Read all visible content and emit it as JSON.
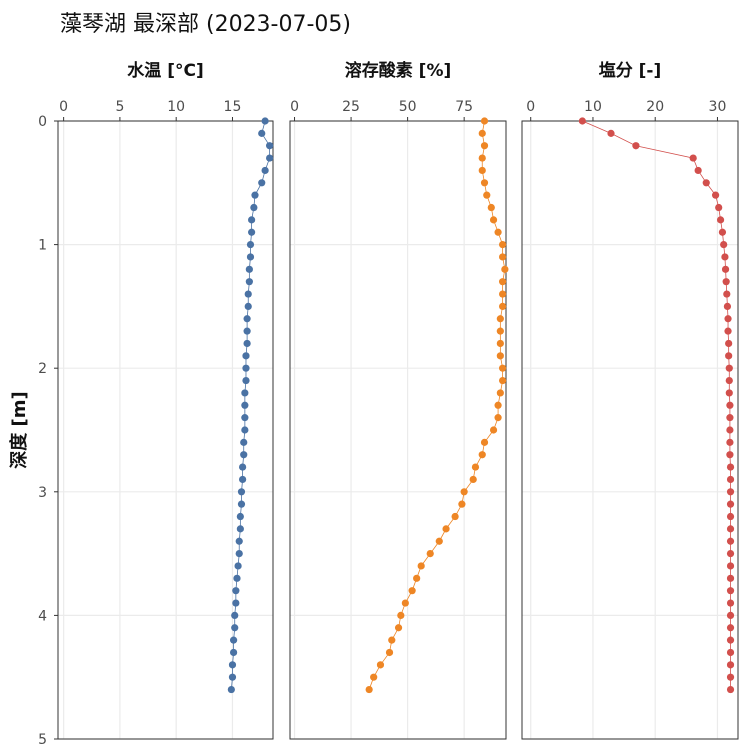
{
  "title": "藻琴湖 最深部 (2023-07-05)",
  "chart_data": {
    "type": "scatter",
    "ylabel": "深度 [m]",
    "ylim": [
      0,
      5
    ],
    "y_reversed": true,
    "y_ticks": [
      0,
      1,
      2,
      3,
      4,
      5
    ],
    "grid": true,
    "connected_points": true,
    "depth": [
      0.0,
      0.1,
      0.2,
      0.3,
      0.4,
      0.5,
      0.6,
      0.7,
      0.8,
      0.9,
      1.0,
      1.1,
      1.2,
      1.3,
      1.4,
      1.5,
      1.6,
      1.7,
      1.8,
      1.9,
      2.0,
      2.1,
      2.2,
      2.3,
      2.4,
      2.5,
      2.6,
      2.7,
      2.8,
      2.9,
      3.0,
      3.1,
      3.2,
      3.3,
      3.4,
      3.5,
      3.6,
      3.7,
      3.8,
      3.9,
      4.0,
      4.1,
      4.2,
      4.3,
      4.4,
      4.5,
      4.6
    ],
    "panels": [
      {
        "name": "水温 [°C]",
        "color": "#4a72a4",
        "xlim": [
          -0.5,
          18.6
        ],
        "x_ticks": [
          0,
          5,
          10,
          15
        ],
        "values": [
          17.9,
          17.6,
          18.3,
          18.3,
          17.9,
          17.6,
          17.0,
          16.9,
          16.7,
          16.7,
          16.6,
          16.6,
          16.5,
          16.5,
          16.4,
          16.4,
          16.3,
          16.3,
          16.3,
          16.2,
          16.2,
          16.2,
          16.1,
          16.1,
          16.1,
          16.1,
          16.0,
          16.0,
          15.9,
          15.9,
          15.8,
          15.8,
          15.7,
          15.7,
          15.6,
          15.6,
          15.5,
          15.4,
          15.3,
          15.3,
          15.2,
          15.2,
          15.1,
          15.1,
          15.0,
          15.0,
          14.9
        ]
      },
      {
        "name": "溶存酸素 [%]",
        "color": "#ee8625",
        "xlim": [
          -2,
          93.5
        ],
        "x_ticks": [
          0,
          25,
          50,
          75
        ],
        "values": [
          84,
          83,
          84,
          83,
          83,
          84,
          85,
          87,
          88,
          90,
          92,
          92,
          93,
          92,
          92,
          92,
          91,
          91,
          91,
          91,
          92,
          92,
          91,
          90,
          90,
          88,
          84,
          83,
          80,
          79,
          75,
          74,
          71,
          67,
          64,
          60,
          56,
          54,
          52,
          49,
          47,
          46,
          43,
          42,
          38,
          35,
          33
        ]
      },
      {
        "name": "塩分 [-]",
        "color": "#d24f4c",
        "xlim": [
          -1.4,
          33.3
        ],
        "x_ticks": [
          0,
          10,
          20,
          30
        ],
        "values": [
          8.3,
          12.9,
          16.9,
          26.1,
          26.9,
          28.2,
          29.7,
          30.2,
          30.5,
          30.8,
          31.0,
          31.2,
          31.3,
          31.4,
          31.5,
          31.6,
          31.7,
          31.7,
          31.8,
          31.8,
          31.9,
          31.9,
          31.9,
          32.0,
          32.0,
          32.0,
          32.0,
          32.0,
          32.1,
          32.1,
          32.1,
          32.1,
          32.1,
          32.1,
          32.1,
          32.1,
          32.1,
          32.1,
          32.1,
          32.1,
          32.1,
          32.1,
          32.1,
          32.1,
          32.1,
          32.1,
          32.1
        ]
      }
    ]
  }
}
